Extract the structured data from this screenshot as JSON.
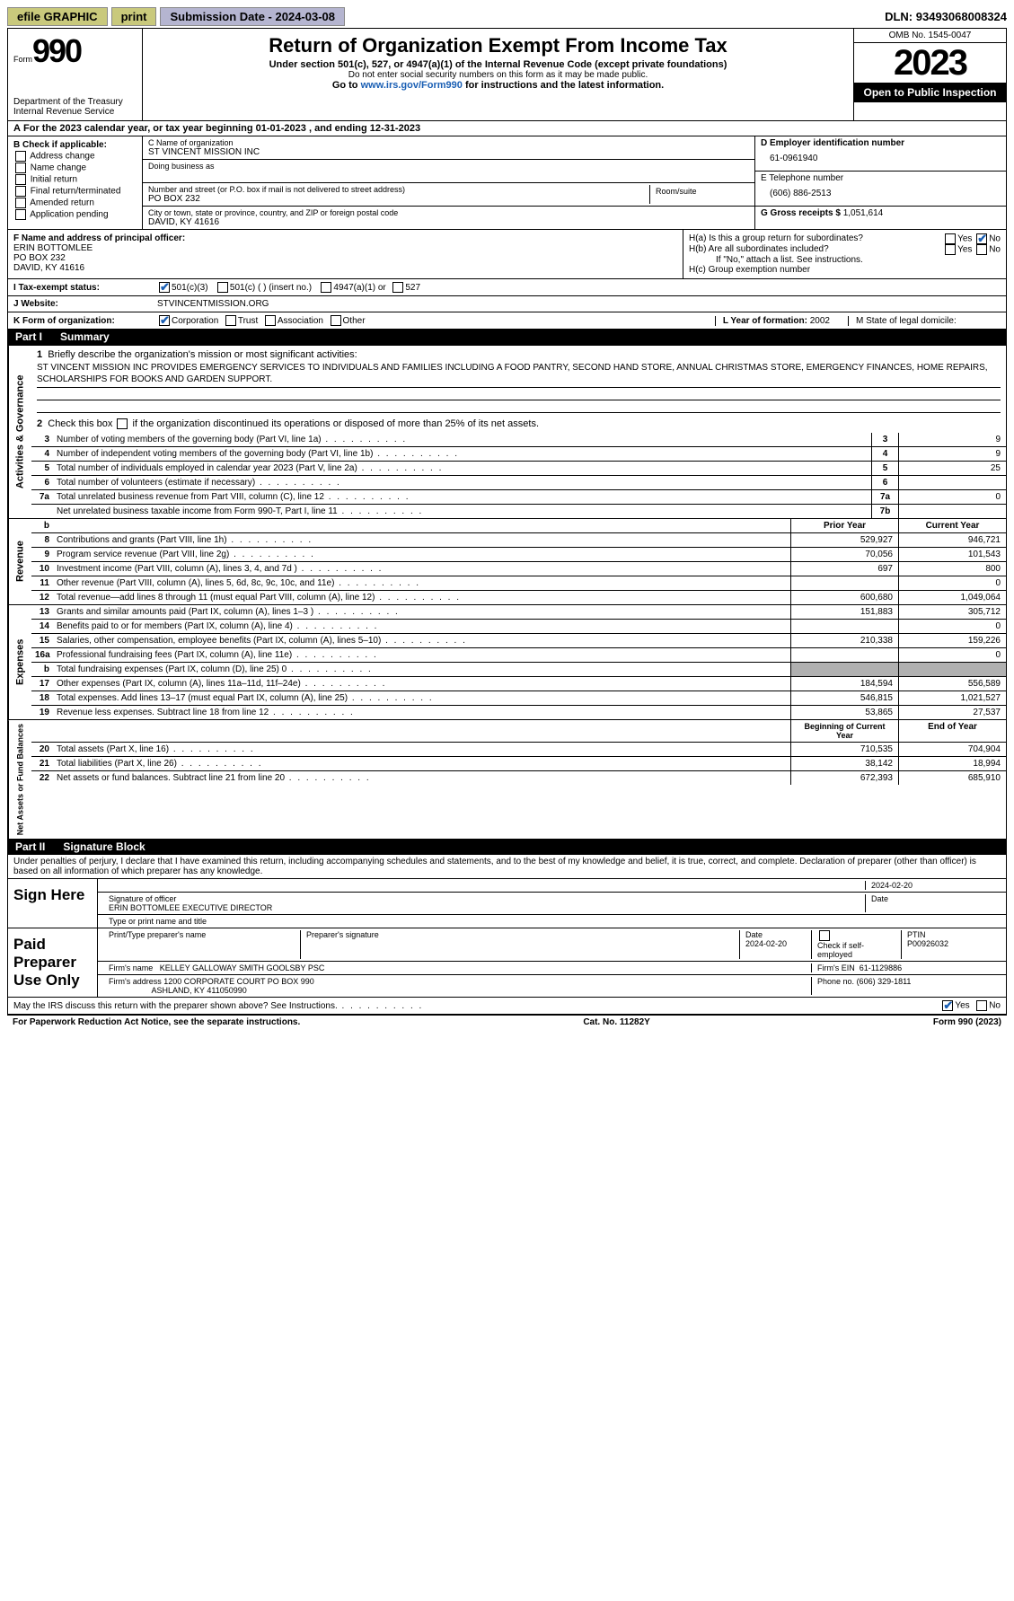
{
  "topbar": {
    "efile": "efile GRAPHIC",
    "print": "print",
    "subdate_label": "Submission Date - ",
    "subdate": "2024-03-08",
    "dln_label": "DLN: ",
    "dln": "93493068008324"
  },
  "header": {
    "form_word": "Form",
    "form_num": "990",
    "dept": "Department of the Treasury\nInternal Revenue Service",
    "title": "Return of Organization Exempt From Income Tax",
    "sub1": "Under section 501(c), 527, or 4947(a)(1) of the Internal Revenue Code (except private foundations)",
    "sub2": "Do not enter social security numbers on this form as it may be made public.",
    "sub3_pre": "Go to ",
    "sub3_link": "www.irs.gov/Form990",
    "sub3_post": " for instructions and the latest information.",
    "omb": "OMB No. 1545-0047",
    "year": "2023",
    "inspect": "Open to Public Inspection"
  },
  "calrow": {
    "a": "A",
    "text_pre": " For the 2023 calendar year, or tax year beginning ",
    "begin": "01-01-2023",
    "mid": "   , and ending ",
    "end": "12-31-2023"
  },
  "boxB": {
    "label": "B Check if applicable:",
    "opts": [
      "Address change",
      "Name change",
      "Initial return",
      "Final return/terminated",
      "Amended return",
      "Application pending"
    ]
  },
  "boxC": {
    "name_label": "C Name of organization",
    "name": "ST VINCENT MISSION INC",
    "dba_label": "Doing business as",
    "addr_label": "Number and street (or P.O. box if mail is not delivered to street address)",
    "room_label": "Room/suite",
    "addr": "PO BOX 232",
    "city_label": "City or town, state or province, country, and ZIP or foreign postal code",
    "city": "DAVID, KY  41616"
  },
  "boxD": {
    "label": "D Employer identification number",
    "val": "61-0961940"
  },
  "boxE": {
    "label": "E Telephone number",
    "val": "(606) 886-2513"
  },
  "boxG": {
    "label": "G Gross receipts $ ",
    "val": "1,051,614"
  },
  "boxF": {
    "label": "F  Name and address of principal officer:",
    "name": "ERIN BOTTOMLEE",
    "addr1": "PO BOX 232",
    "addr2": "DAVID, KY  41616"
  },
  "boxH": {
    "a": "H(a)  Is this a group return for subordinates?",
    "a_yes": "Yes",
    "a_no": "No",
    "b": "H(b)  Are all subordinates included?",
    "b_note": "If \"No,\" attach a list. See instructions.",
    "c": "H(c)  Group exemption number"
  },
  "rowI": {
    "label": "I    Tax-exempt status:",
    "o1": "501(c)(3)",
    "o2": "501(c) (  ) (insert no.)",
    "o3": "4947(a)(1) or",
    "o4": "527"
  },
  "rowJ": {
    "label": "J    Website:",
    "val": "STVINCENTMISSION.ORG"
  },
  "rowK": {
    "label": "K Form of organization:",
    "o1": "Corporation",
    "o2": "Trust",
    "o3": "Association",
    "o4": "Other"
  },
  "rowL": {
    "label": "L Year of formation: ",
    "val": "2002"
  },
  "rowM": {
    "label": "M State of legal domicile:"
  },
  "part1": {
    "tag": "Part I",
    "title": "Summary"
  },
  "mission": {
    "q1": "Briefly describe the organization's mission or most significant activities:",
    "text": "ST VINCENT MISSION INC PROVIDES EMERGENCY SERVICES TO INDIVIDUALS AND FAMILIES INCLUDING A FOOD PANTRY, SECOND HAND STORE, ANNUAL CHRISTMAS STORE, EMERGENCY FINANCES, HOME REPAIRS, SCHOLARSHIPS FOR BOOKS AND GARDEN SUPPORT.",
    "q2_pre": "Check this box ",
    "q2_post": " if the organization discontinued its operations or disposed of more than 25% of its net assets."
  },
  "vtabs": {
    "ag": "Activities & Governance",
    "rev": "Revenue",
    "exp": "Expenses",
    "net": "Net Assets or Fund Balances"
  },
  "lines_ag": [
    {
      "n": "3",
      "d": "Number of voting members of the governing body (Part VI, line 1a)",
      "box": "3",
      "v": "9"
    },
    {
      "n": "4",
      "d": "Number of independent voting members of the governing body (Part VI, line 1b)",
      "box": "4",
      "v": "9"
    },
    {
      "n": "5",
      "d": "Total number of individuals employed in calendar year 2023 (Part V, line 2a)",
      "box": "5",
      "v": "25"
    },
    {
      "n": "6",
      "d": "Total number of volunteers (estimate if necessary)",
      "box": "6",
      "v": ""
    },
    {
      "n": "7a",
      "d": "Total unrelated business revenue from Part VIII, column (C), line 12",
      "box": "7a",
      "v": "0"
    },
    {
      "n": "",
      "d": "Net unrelated business taxable income from Form 990-T, Part I, line 11",
      "box": "7b",
      "v": ""
    }
  ],
  "col_hdrs": {
    "b": "b",
    "prior": "Prior Year",
    "current": "Current Year",
    "boy": "Beginning of Current Year",
    "eoy": "End of Year"
  },
  "lines_rev": [
    {
      "n": "8",
      "d": "Contributions and grants (Part VIII, line 1h)",
      "p": "529,927",
      "c": "946,721"
    },
    {
      "n": "9",
      "d": "Program service revenue (Part VIII, line 2g)",
      "p": "70,056",
      "c": "101,543"
    },
    {
      "n": "10",
      "d": "Investment income (Part VIII, column (A), lines 3, 4, and 7d )",
      "p": "697",
      "c": "800"
    },
    {
      "n": "11",
      "d": "Other revenue (Part VIII, column (A), lines 5, 6d, 8c, 9c, 10c, and 11e)",
      "p": "",
      "c": "0"
    },
    {
      "n": "12",
      "d": "Total revenue—add lines 8 through 11 (must equal Part VIII, column (A), line 12)",
      "p": "600,680",
      "c": "1,049,064"
    }
  ],
  "lines_exp": [
    {
      "n": "13",
      "d": "Grants and similar amounts paid (Part IX, column (A), lines 1–3 )",
      "p": "151,883",
      "c": "305,712"
    },
    {
      "n": "14",
      "d": "Benefits paid to or for members (Part IX, column (A), line 4)",
      "p": "",
      "c": "0"
    },
    {
      "n": "15",
      "d": "Salaries, other compensation, employee benefits (Part IX, column (A), lines 5–10)",
      "p": "210,338",
      "c": "159,226"
    },
    {
      "n": "16a",
      "d": "Professional fundraising fees (Part IX, column (A), line 11e)",
      "p": "",
      "c": "0"
    },
    {
      "n": "b",
      "d": "Total fundraising expenses (Part IX, column (D), line 25) 0",
      "p": "shade",
      "c": "shade"
    },
    {
      "n": "17",
      "d": "Other expenses (Part IX, column (A), lines 11a–11d, 11f–24e)",
      "p": "184,594",
      "c": "556,589"
    },
    {
      "n": "18",
      "d": "Total expenses. Add lines 13–17 (must equal Part IX, column (A), line 25)",
      "p": "546,815",
      "c": "1,021,527"
    },
    {
      "n": "19",
      "d": "Revenue less expenses. Subtract line 18 from line 12",
      "p": "53,865",
      "c": "27,537"
    }
  ],
  "lines_net": [
    {
      "n": "20",
      "d": "Total assets (Part X, line 16)",
      "p": "710,535",
      "c": "704,904"
    },
    {
      "n": "21",
      "d": "Total liabilities (Part X, line 26)",
      "p": "38,142",
      "c": "18,994"
    },
    {
      "n": "22",
      "d": "Net assets or fund balances. Subtract line 21 from line 20",
      "p": "672,393",
      "c": "685,910"
    }
  ],
  "part2": {
    "tag": "Part II",
    "title": "Signature Block"
  },
  "perjury": "Under penalties of perjury, I declare that I have examined this return, including accompanying schedules and statements, and to the best of my knowledge and belief, it is true, correct, and complete. Declaration of preparer (other than officer) is based on all information of which preparer has any knowledge.",
  "sign": {
    "here": "Sign Here",
    "sig_label": "Signature of officer",
    "date_label": "Date",
    "date": "2024-02-20",
    "officer": "ERIN BOTTOMLEE  EXECUTIVE DIRECTOR",
    "type_label": "Type or print name and title"
  },
  "paid": {
    "label": "Paid Preparer Use Only",
    "prep_name_label": "Print/Type preparer's name",
    "prep_sig_label": "Preparer's signature",
    "date": "2024-02-20",
    "self_label": "Check        if self-employed",
    "ptin_label": "PTIN",
    "ptin": "P00926032",
    "firm_label": "Firm's name",
    "firm": "KELLEY GALLOWAY SMITH GOOLSBY PSC",
    "ein_label": "Firm's EIN",
    "ein": "61-1129886",
    "addr_label": "Firm's address",
    "addr": "1200 CORPORATE COURT PO BOX 990",
    "addr2": "ASHLAND, KY  411050990",
    "phone_label": "Phone no.",
    "phone": "(606) 329-1811"
  },
  "may_discuss": "May the IRS discuss this return with the preparer shown above? See Instructions.",
  "footer": {
    "pra": "For Paperwork Reduction Act Notice, see the separate instructions.",
    "cat": "Cat. No. 11282Y",
    "form": "Form 990 (2023)"
  }
}
